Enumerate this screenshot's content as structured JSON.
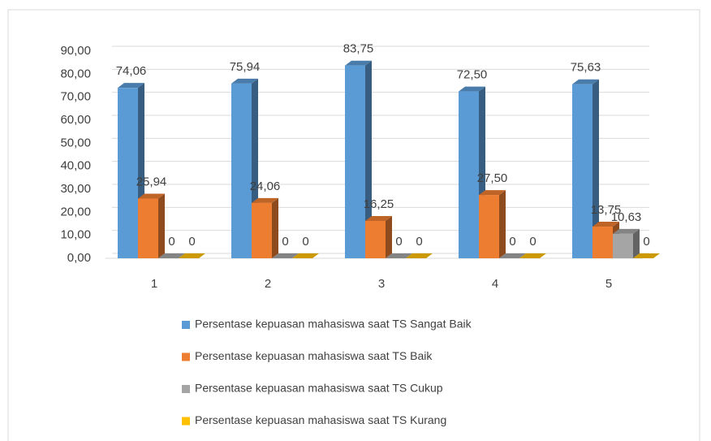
{
  "chart_data": {
    "type": "bar3d",
    "categories": [
      "1",
      "2",
      "3",
      "4",
      "5"
    ],
    "series": [
      {
        "name": "Persentase kepuasan mahasiswa saat TS Sangat Baik",
        "color": "#5b9bd5",
        "values": [
          74.06,
          75.94,
          83.75,
          72.5,
          75.63
        ],
        "value_labels": [
          "74,06",
          "75,94",
          "83,75",
          "72,50",
          "75,63"
        ]
      },
      {
        "name": "Persentase kepuasan mahasiswa saat TS Baik",
        "color": "#ed7d31",
        "values": [
          25.94,
          24.06,
          16.25,
          27.5,
          13.75
        ],
        "value_labels": [
          "25,94",
          "24,06",
          "16,25",
          "27,50",
          "13,75"
        ]
      },
      {
        "name": "Persentase kepuasan mahasiswa saat TS Cukup",
        "color": "#a5a5a5",
        "values": [
          0,
          0,
          0,
          0,
          10.63
        ],
        "value_labels": [
          "0",
          "0",
          "0",
          "0",
          "10,63"
        ]
      },
      {
        "name": "Persentase kepuasan mahasiswa saat TS Kurang",
        "color": "#ffc000",
        "values": [
          0,
          0,
          0,
          0,
          0
        ]
      }
    ],
    "ylim": [
      0,
      90
    ],
    "yticks": [
      {
        "value": 0,
        "label": "0,00"
      },
      {
        "value": 10,
        "label": "10,00"
      },
      {
        "value": 20,
        "label": "20,00"
      },
      {
        "value": 30,
        "label": "30,00"
      },
      {
        "value": 40,
        "label": "40,00"
      },
      {
        "value": 50,
        "label": "50,00"
      },
      {
        "value": 60,
        "label": "60,00"
      },
      {
        "value": 70,
        "label": "70,00"
      },
      {
        "value": 80,
        "label": "80,00"
      },
      {
        "value": 90,
        "label": "90,00"
      }
    ],
    "grid": true
  }
}
